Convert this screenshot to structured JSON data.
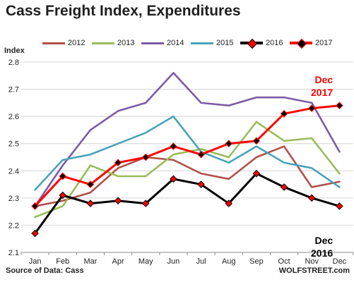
{
  "chart_data": {
    "type": "line",
    "title": "Cass Freight Index, Expenditures",
    "ylabel": "Index",
    "xlabel": "",
    "categories": [
      "Jan",
      "Feb",
      "Mar",
      "Apr",
      "May",
      "Jun",
      "Jul",
      "Aug",
      "Sep",
      "Oct",
      "Nov",
      "Dec"
    ],
    "ylim": [
      2.1,
      2.8
    ],
    "yticks": [
      "2.1",
      "2.2",
      "2.3",
      "2.4",
      "2.5",
      "2.6",
      "2.7",
      "2.8"
    ],
    "grid": true,
    "legend_position": "top",
    "series": [
      {
        "name": "2012",
        "color": "#b0504a",
        "markers": false,
        "thick": false,
        "values": [
          2.27,
          2.29,
          2.32,
          2.41,
          2.45,
          2.44,
          2.39,
          2.37,
          2.45,
          2.49,
          2.34,
          2.36
        ]
      },
      {
        "name": "2013",
        "color": "#9bbb59",
        "markers": false,
        "thick": false,
        "values": [
          2.23,
          2.27,
          2.42,
          2.38,
          2.38,
          2.46,
          2.48,
          2.45,
          2.58,
          2.51,
          2.52,
          2.39
        ]
      },
      {
        "name": "2014",
        "color": "#7b5ca6",
        "markers": false,
        "thick": false,
        "values": [
          2.27,
          2.42,
          2.55,
          2.62,
          2.65,
          2.76,
          2.65,
          2.64,
          2.67,
          2.67,
          2.65,
          2.47
        ]
      },
      {
        "name": "2015",
        "color": "#4aa3b8",
        "markers": false,
        "thick": false,
        "values": [
          2.33,
          2.44,
          2.46,
          2.5,
          2.54,
          2.6,
          2.47,
          2.43,
          2.49,
          2.43,
          2.41,
          2.34
        ]
      },
      {
        "name": "2016",
        "color": "#000000",
        "markers": true,
        "thick": true,
        "values": [
          2.17,
          2.31,
          2.28,
          2.29,
          2.28,
          2.37,
          2.35,
          2.28,
          2.39,
          2.34,
          2.3,
          2.27
        ]
      },
      {
        "name": "2017",
        "color": "#ff0000",
        "markers": true,
        "thick": true,
        "values": [
          2.27,
          2.38,
          2.35,
          2.43,
          2.45,
          2.49,
          2.46,
          2.5,
          2.51,
          2.61,
          2.63,
          2.64
        ]
      }
    ],
    "annotations": [
      {
        "line1": "Dec",
        "line2": "2017",
        "color": "#ff0000"
      },
      {
        "line1": "Dec",
        "line2": "2016",
        "color": "#000000"
      }
    ]
  },
  "footer": {
    "source": "Source of Data: Cass",
    "credit": "WOLFSTREET.com"
  }
}
